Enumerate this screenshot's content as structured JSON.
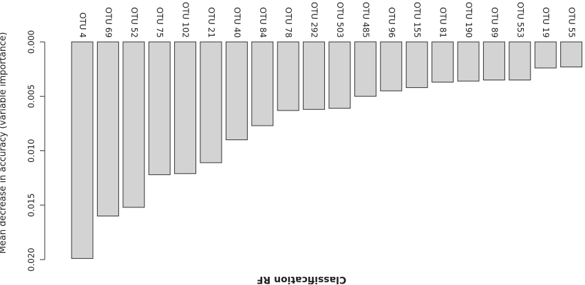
{
  "chart_data": {
    "type": "bar",
    "orientation": "vertical, displayed rotated 180 degrees",
    "title": "Classification RF",
    "ylabel": "Mean decrease in accuracy (variable importance)",
    "xlabel": "",
    "categories": [
      "OTU 4",
      "OTU 69",
      "OTU 52",
      "OTU 75",
      "OTU 102",
      "OTU 21",
      "OTU 40",
      "OTU 84",
      "OTU 78",
      "OTU 292",
      "OTU 503",
      "OTU 485",
      "OTU 96",
      "OTU 155",
      "OTU 81",
      "OTU 190",
      "OTU 89",
      "OTU 553",
      "OTU 19",
      "OTU 55"
    ],
    "values": [
      0.0199,
      0.016,
      0.0152,
      0.0122,
      0.0121,
      0.0111,
      0.009,
      0.0077,
      0.0063,
      0.0062,
      0.0061,
      0.005,
      0.0045,
      0.0042,
      0.0037,
      0.0036,
      0.0035,
      0.0035,
      0.0024,
      0.0023
    ],
    "ylim": [
      0,
      0.02
    ],
    "yticks": [
      0.0,
      0.005,
      0.01,
      0.015,
      0.02
    ],
    "ytick_labels": [
      "0.000",
      "0.005",
      "0.010",
      "0.015",
      "0.020"
    ],
    "grid": false,
    "bar_color": "#d3d3d3",
    "edge_color": "#333333"
  }
}
